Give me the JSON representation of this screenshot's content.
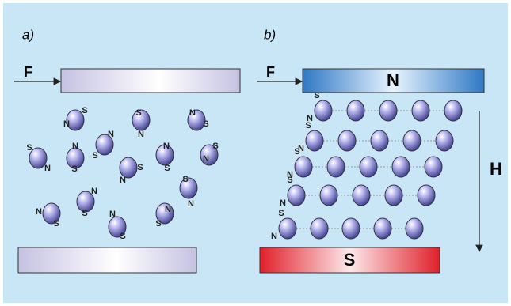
{
  "panel_a": {
    "label": "a)",
    "force": "F",
    "particle_labels": [
      [
        "N",
        "S"
      ],
      [
        "S",
        "N"
      ],
      [
        "N",
        "S"
      ],
      [
        "S",
        "N"
      ],
      [
        "N",
        "S"
      ],
      [
        "N",
        "S"
      ],
      [
        "S",
        "N"
      ],
      [
        "N",
        "S"
      ],
      [
        "S",
        "N"
      ],
      [
        "S",
        "N"
      ],
      [
        "N",
        "S"
      ],
      [
        "N",
        "S"
      ],
      [
        "N",
        "S"
      ],
      [
        "N",
        "S"
      ]
    ]
  },
  "panel_b": {
    "label": "b)",
    "force": "F",
    "top_pole": "N",
    "bottom_pole": "S",
    "field": "H",
    "particle_labels": [
      [
        "S",
        "N"
      ],
      [
        "S",
        "N"
      ],
      [
        "S",
        "N"
      ],
      [
        "S",
        "N"
      ],
      [
        "S",
        "N"
      ]
    ]
  }
}
